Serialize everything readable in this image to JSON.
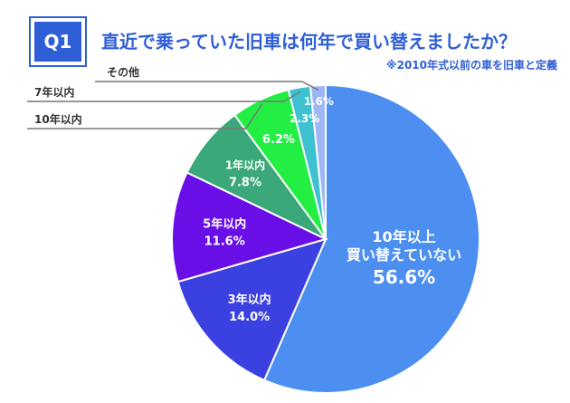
{
  "header": {
    "badge": "Q1",
    "title": "直近で乗っていた旧車は何年で買い替えましたか？",
    "note": "※2010年式以前の車を旧車と定義"
  },
  "chart_data": {
    "type": "pie",
    "title": "直近で乗っていた旧車は何年で買い替えましたか？",
    "slices": [
      {
        "label": [
          "10年以上",
          "買い替えていない"
        ],
        "value": 56.6,
        "value_text": "56.6%",
        "color": "#4d8ff0"
      },
      {
        "label": [
          "3年以内"
        ],
        "value": 14.0,
        "value_text": "14.0%",
        "color": "#3b40e0"
      },
      {
        "label": [
          "5年以内"
        ],
        "value": 11.6,
        "value_text": "11.6%",
        "color": "#6a0ee8"
      },
      {
        "label": [
          "1年以内"
        ],
        "value": 7.8,
        "value_text": "7.8%",
        "color": "#3aa878"
      },
      {
        "label": [
          "10年以内"
        ],
        "value": 6.2,
        "value_text": "6.2%",
        "color": "#22ee44"
      },
      {
        "label": [
          "7年以内"
        ],
        "value": 2.3,
        "value_text": "2.3%",
        "color": "#3dc1d1"
      },
      {
        "label": [
          "その他"
        ],
        "value": 1.6,
        "value_text": "1.6%",
        "color": "#9cb6f6"
      }
    ]
  }
}
